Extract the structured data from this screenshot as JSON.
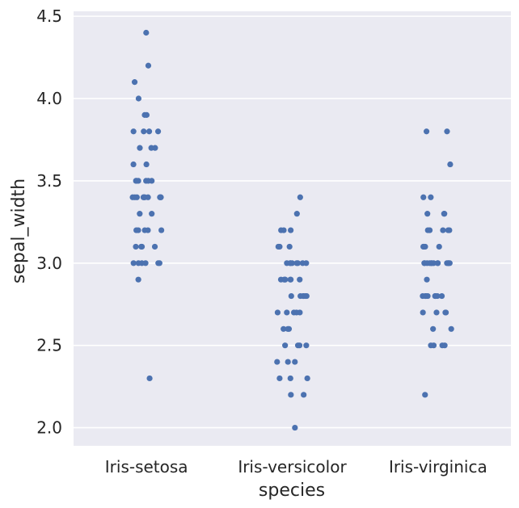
{
  "chart_data": {
    "type": "scatter",
    "style": "strip plot (jittered categorical scatter)",
    "xlabel": "species",
    "ylabel": "sepal_width",
    "categories": [
      "Iris-setosa",
      "Iris-versicolor",
      "Iris-virginica"
    ],
    "ylim": [
      1.89,
      4.53
    ],
    "yticks": [
      "2.0",
      "2.5",
      "3.0",
      "3.5",
      "4.0",
      "4.5"
    ],
    "grid": true,
    "legend": "none",
    "colors": {
      "points": "#4c72b0",
      "plot_background": "#eaeaf2",
      "grid": "#ffffff",
      "text": "#262626"
    },
    "series": [
      {
        "category": "Iris-setosa",
        "values": [
          4.4,
          4.2,
          4.1,
          4.0,
          3.9,
          3.9,
          3.8,
          3.8,
          3.8,
          3.8,
          3.7,
          3.7,
          3.7,
          3.6,
          3.6,
          3.5,
          3.5,
          3.5,
          3.5,
          3.5,
          3.5,
          3.4,
          3.4,
          3.4,
          3.4,
          3.4,
          3.4,
          3.4,
          3.4,
          3.4,
          3.3,
          3.3,
          3.2,
          3.2,
          3.2,
          3.2,
          3.2,
          3.1,
          3.1,
          3.1,
          3.1,
          3.0,
          3.0,
          3.0,
          3.0,
          3.0,
          3.0,
          2.9,
          2.3,
          3.4
        ]
      },
      {
        "category": "Iris-versicolor",
        "values": [
          3.4,
          3.3,
          3.2,
          3.2,
          3.2,
          3.1,
          3.1,
          3.1,
          3.0,
          3.0,
          3.0,
          3.0,
          3.0,
          3.0,
          3.0,
          3.0,
          2.9,
          2.9,
          2.9,
          2.9,
          2.9,
          2.9,
          2.9,
          2.8,
          2.8,
          2.8,
          2.8,
          2.8,
          2.7,
          2.7,
          2.7,
          2.7,
          2.7,
          2.6,
          2.6,
          2.6,
          2.5,
          2.5,
          2.5,
          2.5,
          2.4,
          2.4,
          2.4,
          2.3,
          2.3,
          2.3,
          2.2,
          2.2,
          2.0,
          2.8
        ]
      },
      {
        "category": "Iris-virginica",
        "values": [
          3.8,
          3.8,
          3.6,
          3.4,
          3.4,
          3.3,
          3.3,
          3.3,
          3.2,
          3.2,
          3.2,
          3.2,
          3.2,
          3.1,
          3.1,
          3.1,
          3.1,
          3.0,
          3.0,
          3.0,
          3.0,
          3.0,
          3.0,
          3.0,
          3.0,
          3.0,
          3.0,
          3.0,
          3.0,
          2.9,
          2.8,
          2.8,
          2.8,
          2.8,
          2.8,
          2.8,
          2.8,
          2.8,
          2.7,
          2.7,
          2.7,
          2.7,
          2.6,
          2.6,
          2.5,
          2.5,
          2.5,
          2.5,
          2.2,
          3.0
        ]
      }
    ]
  }
}
